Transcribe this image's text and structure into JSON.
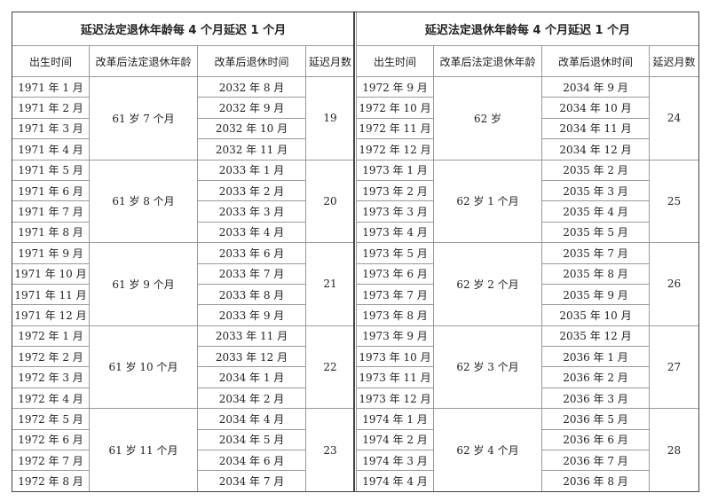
{
  "tables": [
    {
      "title": "延迟法定退休年龄每 4 个月延迟 1 个月",
      "headers": [
        "出生时间",
        "改革后法定退休年龄",
        "改革后退休时间",
        "延迟月数"
      ],
      "groups": [
        {
          "age": "61 岁 7 个月",
          "delay": "19",
          "rows": [
            [
              "1971 年 1 月",
              "2032 年 8 月"
            ],
            [
              "1971 年 2 月",
              "2032 年 9 月"
            ],
            [
              "1971 年 3 月",
              "2032 年 10 月"
            ],
            [
              "1971 年 4 月",
              "2032 年 11 月"
            ]
          ]
        },
        {
          "age": "61 岁 8 个月",
          "delay": "20",
          "rows": [
            [
              "1971 年 5 月",
              "2033 年 1 月"
            ],
            [
              "1971 年 6 月",
              "2033 年 2 月"
            ],
            [
              "1971 年 7 月",
              "2033 年 3 月"
            ],
            [
              "1971 年 8 月",
              "2033 年 4 月"
            ]
          ]
        },
        {
          "age": "61 岁 9 个月",
          "delay": "21",
          "rows": [
            [
              "1971 年 9 月",
              "2033 年 6 月"
            ],
            [
              "1971 年 10 月",
              "2033 年 7 月"
            ],
            [
              "1971 年 11 月",
              "2033 年 8 月"
            ],
            [
              "1971 年 12 月",
              "2033 年 9 月"
            ]
          ]
        },
        {
          "age": "61 岁 10 个月",
          "delay": "22",
          "rows": [
            [
              "1972 年 1 月",
              "2033 年 11 月"
            ],
            [
              "1972 年 2 月",
              "2033 年 12 月"
            ],
            [
              "1972 年 3 月",
              "2034 年 1 月"
            ],
            [
              "1972 年 4 月",
              "2034 年 2 月"
            ]
          ]
        },
        {
          "age": "61 岁 11 个月",
          "delay": "23",
          "rows": [
            [
              "1972 年 5 月",
              "2034 年 4 月"
            ],
            [
              "1972 年 6 月",
              "2034 年 5 月"
            ],
            [
              "1972 年 7 月",
              "2034 年 6 月"
            ],
            [
              "1972 年 8 月",
              "2034 年 7 月"
            ]
          ]
        }
      ]
    },
    {
      "title": "延迟法定退休年龄每 4 个月延迟 1 个月",
      "headers": [
        "出生时间",
        "改革后法定退休年龄",
        "改革后退休时间",
        "延迟月数"
      ],
      "groups": [
        {
          "age": "62 岁",
          "delay": "24",
          "rows": [
            [
              "1972 年 9 月",
              "2034 年 9 月"
            ],
            [
              "1972 年 10 月",
              "2034 年 10 月"
            ],
            [
              "1972 年 11 月",
              "2034 年 11 月"
            ],
            [
              "1972 年 12 月",
              "2034 年 12 月"
            ]
          ]
        },
        {
          "age": "62 岁 1 个月",
          "delay": "25",
          "rows": [
            [
              "1973 年 1 月",
              "2035 年 2 月"
            ],
            [
              "1973 年 2 月",
              "2035 年 3 月"
            ],
            [
              "1973 年 3 月",
              "2035 年 4 月"
            ],
            [
              "1973 年 4 月",
              "2035 年 5 月"
            ]
          ]
        },
        {
          "age": "62 岁 2 个月",
          "delay": "26",
          "rows": [
            [
              "1973 年 5 月",
              "2035 年 7 月"
            ],
            [
              "1973 年 6 月",
              "2035 年 8 月"
            ],
            [
              "1973 年 7 月",
              "2035 年 9 月"
            ],
            [
              "1973 年 8 月",
              "2035 年 10 月"
            ]
          ]
        },
        {
          "age": "62 岁 3 个月",
          "delay": "27",
          "rows": [
            [
              "1973 年 9 月",
              "2035 年 12 月"
            ],
            [
              "1973 年 10 月",
              "2036 年 1 月"
            ],
            [
              "1973 年 11 月",
              "2036 年 2 月"
            ],
            [
              "1973 年 12 月",
              "2036 年 3 月"
            ]
          ]
        },
        {
          "age": "62 岁 4 个月",
          "delay": "28",
          "rows": [
            [
              "1974 年 1 月",
              "2036 年 5 月"
            ],
            [
              "1974 年 2 月",
              "2036 年 6 月"
            ],
            [
              "1974 年 3 月",
              "2036 年 7 月"
            ],
            [
              "1974 年 4 月",
              "2036 年 8 月"
            ]
          ]
        }
      ]
    }
  ]
}
